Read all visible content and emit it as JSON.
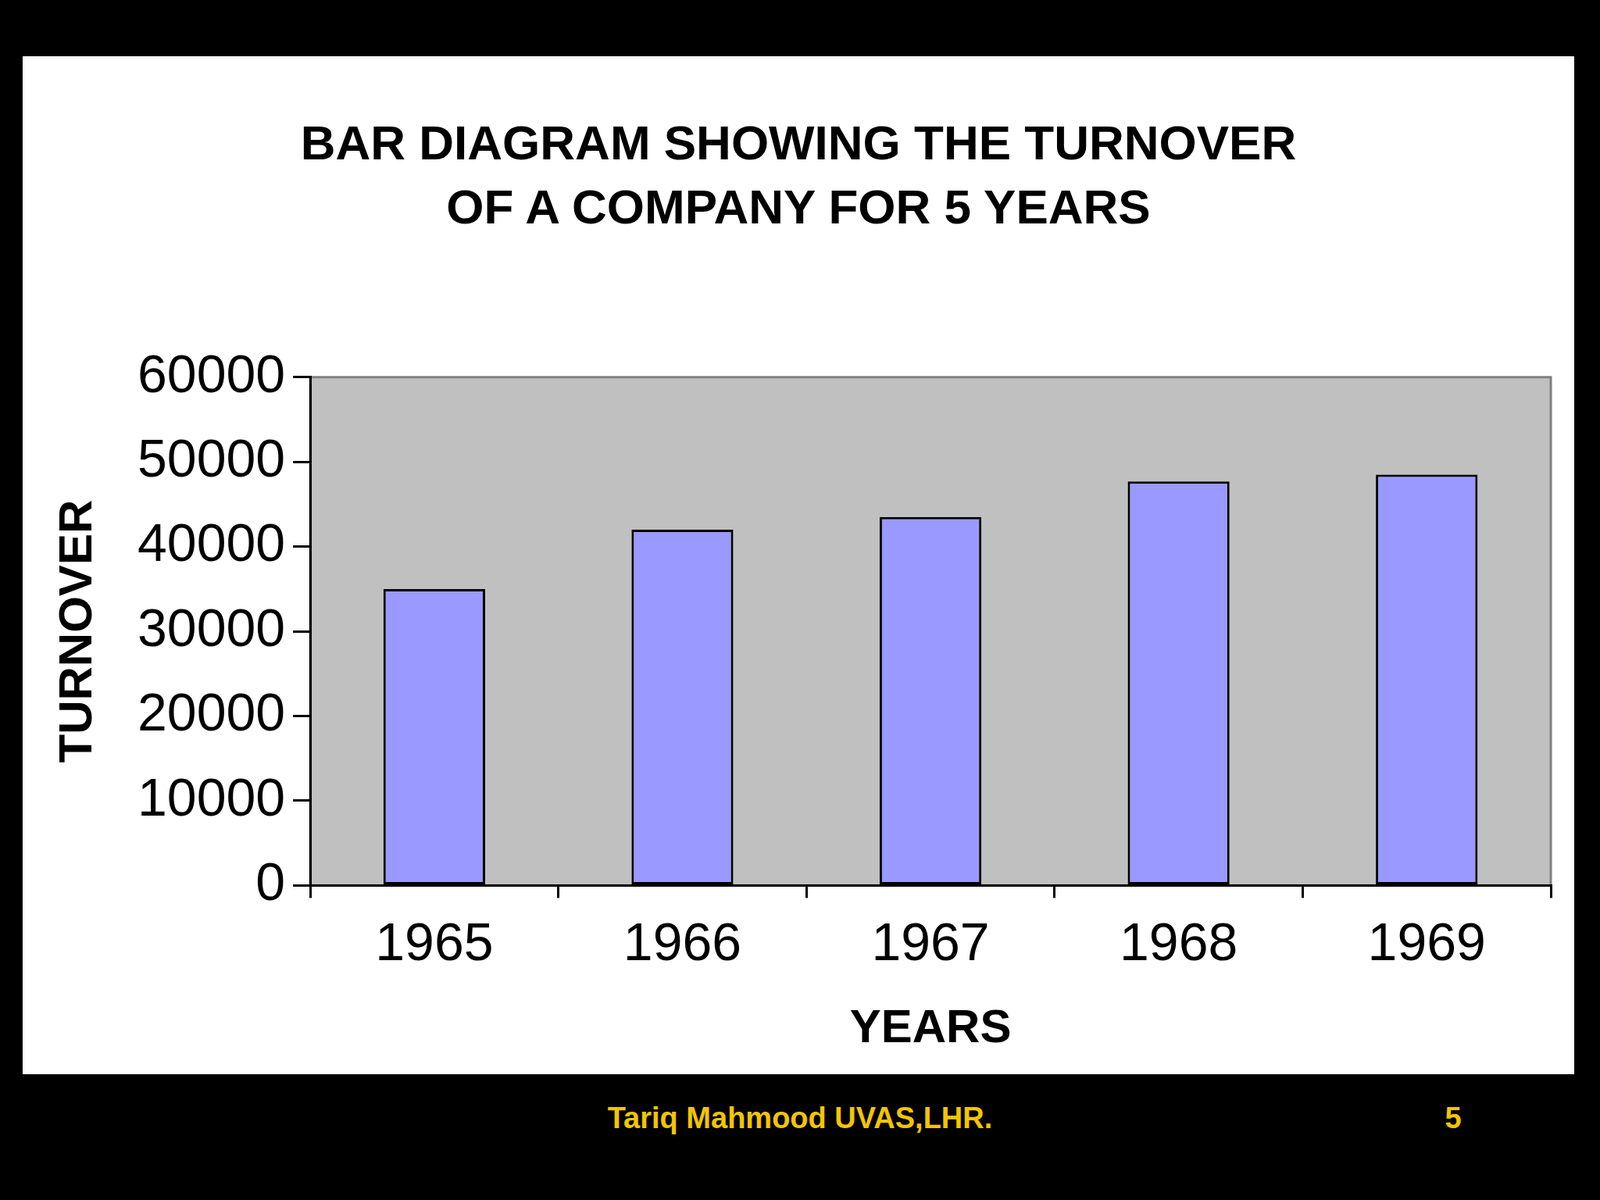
{
  "chart_data": {
    "type": "bar",
    "title": "BAR DIAGRAM SHOWING THE TURNOVER OF A COMPANY FOR 5 YEARS",
    "x_label": "YEARS",
    "y_label": "TURNOVER",
    "categories": [
      "1965",
      "1966",
      "1967",
      "1968",
      "1969"
    ],
    "values": [
      35000,
      42000,
      43500,
      47700,
      48500
    ],
    "color": "#9999ff",
    "ylim": [
      0,
      60000
    ],
    "yticks": [
      0,
      10000,
      20000,
      30000,
      40000,
      50000,
      60000
    ],
    "grid": false
  },
  "footer": {
    "text": "Tariq Mahmood UVAS,LHR.",
    "page": 5
  }
}
